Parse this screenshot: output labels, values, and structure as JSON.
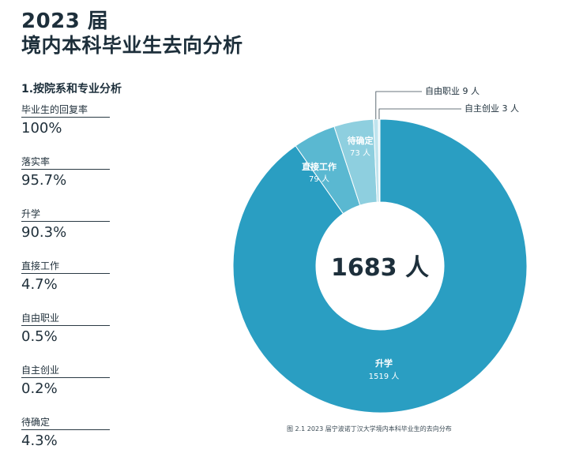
{
  "header": {
    "year_title": "2023 届",
    "title": "境内本科毕业生去向分析"
  },
  "section_title": "1.按院系和专业分析",
  "stats": [
    {
      "label": "毕业生的回复率",
      "value": "100%"
    },
    {
      "label": "落实率",
      "value": "95.7%"
    },
    {
      "label": "升学",
      "value": "90.3%"
    },
    {
      "label": "直接工作",
      "value": "4.7%"
    },
    {
      "label": "自由职业",
      "value": "0.5%"
    },
    {
      "label": "自主创业",
      "value": "0.2%"
    },
    {
      "label": "待确定",
      "value": "4.3%"
    }
  ],
  "colors": {
    "升学": "#2a9ec2",
    "直接工作": "#5ab8d1",
    "待确定": "#8ecfdf",
    "自由职业": "#c0e4ee",
    "自主创业": "#e2f2f7"
  },
  "chart_data": {
    "type": "pie",
    "variant": "donut",
    "center_label": "1683 人",
    "slices": [
      {
        "name": "升学",
        "value": 1519,
        "value_label": "1519 人",
        "color": "#2a9ec2"
      },
      {
        "name": "直接工作",
        "value": 79,
        "value_label": "79 人",
        "color": "#5ab8d1"
      },
      {
        "name": "待确定",
        "value": 73,
        "value_label": "73 人",
        "color": "#8ecfdf"
      },
      {
        "name": "自由职业",
        "value": 9,
        "value_label": "9 人",
        "color": "#c0e4ee"
      },
      {
        "name": "自主创业",
        "value": 3,
        "value_label": "3 人",
        "color": "#e2f2f7"
      }
    ],
    "callouts": [
      {
        "name": "自由职业",
        "text": "自由职业 9 人"
      },
      {
        "name": "自主创业",
        "text": "自主创业 3 人"
      }
    ],
    "caption": "图 2.1 2023 届宁波诺丁汉大学境内本科毕业生的去向分布"
  }
}
